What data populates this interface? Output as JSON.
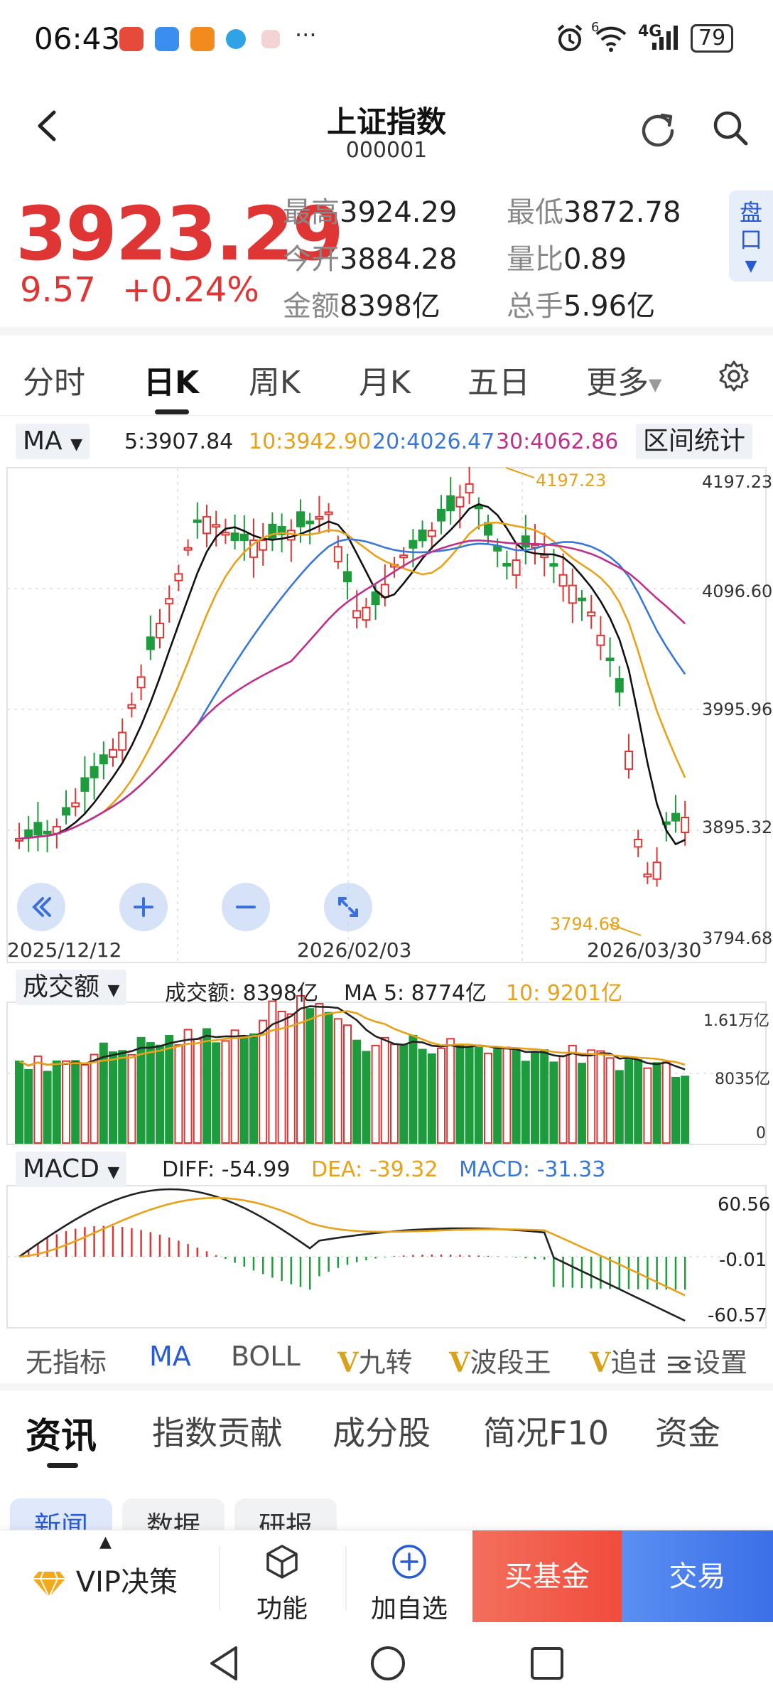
{
  "status_bar": {
    "time": "06:43",
    "more": "···",
    "network": "4G",
    "signal_prefix": "6",
    "battery": "79"
  },
  "header": {
    "title": "上证指数",
    "code": "000001"
  },
  "quote": {
    "price": "3923.29",
    "change": "9.57",
    "change_pct": "+0.24%",
    "high_label": "最高",
    "high": "3924.29",
    "low_label": "最低",
    "low": "3872.78",
    "open_label": "今开",
    "open": "3884.28",
    "vol_ratio_label": "量比",
    "vol_ratio": "0.89",
    "amount_label": "金额",
    "amount": "8398亿",
    "hands_label": "总手",
    "hands": "5.96亿",
    "pankou_label": "盘口"
  },
  "period_tabs": [
    "分时",
    "日K",
    "周K",
    "月K",
    "五日",
    "更多"
  ],
  "active_period": "日K",
  "ma_legend": {
    "dropdown": "MA",
    "ma5": "5:3907.84",
    "ma10": "10:3942.90",
    "ma20": "20:4026.47",
    "ma30": "30:4062.86",
    "range_stats": "区间统计"
  },
  "price_axis": [
    "4197.23",
    "4096.60",
    "3995.96",
    "3895.32",
    "3794.68"
  ],
  "date_axis": [
    "2025/12/12",
    "2026/02/03",
    "2026/03/30"
  ],
  "annotations": {
    "high": "4197.23",
    "low": "3794.68"
  },
  "volume_legend": {
    "dropdown": "成交额",
    "amount": "成交额: 8398亿",
    "ma5": "MA 5: 8774亿",
    "ma10": "10: 9201亿"
  },
  "volume_axis": [
    "1.61万亿",
    "8035亿",
    "0"
  ],
  "macd_legend": {
    "dropdown": "MACD",
    "diff": "DIFF: -54.99",
    "dea": "DEA: -39.32",
    "macd": "MACD: -31.33"
  },
  "macd_axis": [
    "60.56",
    "-0.01",
    "-60.57"
  ],
  "indicator_tabs": {
    "none": "无指标",
    "ma": "MA",
    "boll": "BOLL",
    "v": "V",
    "jiuzhuan": "九转",
    "boduanwang": "波段王",
    "zhui": "追击",
    "settings": "设置"
  },
  "info_tabs": [
    "资讯",
    "指数贡献",
    "成分股",
    "简况F10",
    "资金"
  ],
  "sub_tabs": [
    "新闻",
    "数据",
    "研报"
  ],
  "action_bar": {
    "vip": "VIP决策",
    "function": "功能",
    "add_watch": "加自选",
    "buy_fund": "买基金",
    "trade": "交易"
  },
  "colors": {
    "up": "#e03535",
    "down": "#1e9b3c",
    "ma5": "#111111",
    "ma10": "#e8a21a",
    "ma20": "#3a78d8",
    "ma30": "#c0308a",
    "accent": "#2a5bd7"
  }
}
